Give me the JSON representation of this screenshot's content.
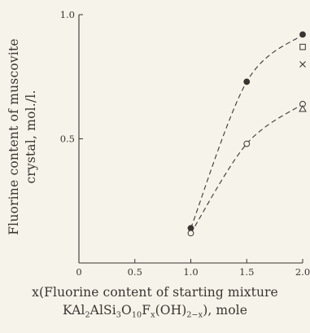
{
  "chart_data": {
    "type": "scatter",
    "ylabel_lines": [
      "Fluorine content of muscovite",
      "crystal, mol./l."
    ],
    "xlabel_line1": "x(Fluorine content of starting mixture",
    "xlabel_formula": "KAl2AlSi3O10Fx(OH)2-x), mole",
    "xlim": [
      0,
      2.0
    ],
    "ylim": [
      0,
      1.0
    ],
    "x_ticks": [
      {
        "value": 0,
        "label": "0"
      },
      {
        "value": 0.5,
        "label": "0.5"
      },
      {
        "value": 1.0,
        "label": "1.0"
      },
      {
        "value": 1.5,
        "label": "1.5"
      },
      {
        "value": 2.0,
        "label": "2.0"
      }
    ],
    "y_ticks": [
      {
        "value": 0.5,
        "label": "0.5"
      },
      {
        "value": 1.0,
        "label": "1.0"
      }
    ],
    "series": [
      {
        "marker": "filled-circle",
        "dashed_curve": true,
        "points": [
          [
            1.0,
            0.14
          ],
          [
            1.5,
            0.73
          ],
          [
            2.0,
            0.92
          ]
        ]
      },
      {
        "marker": "open-circle",
        "dashed_curve": true,
        "points": [
          [
            1.0,
            0.12
          ],
          [
            1.5,
            0.48
          ],
          [
            2.0,
            0.64
          ]
        ]
      },
      {
        "marker": "open-square",
        "dashed_curve": false,
        "points": [
          [
            2.0,
            0.87
          ]
        ]
      },
      {
        "marker": "cross",
        "dashed_curve": false,
        "points": [
          [
            2.0,
            0.8
          ]
        ]
      },
      {
        "marker": "open-triangle",
        "dashed_curve": false,
        "points": [
          [
            2.0,
            0.62
          ]
        ]
      }
    ],
    "grid": false,
    "colors": {
      "ink": "#3a3530",
      "background": "#f6f3ea"
    }
  }
}
